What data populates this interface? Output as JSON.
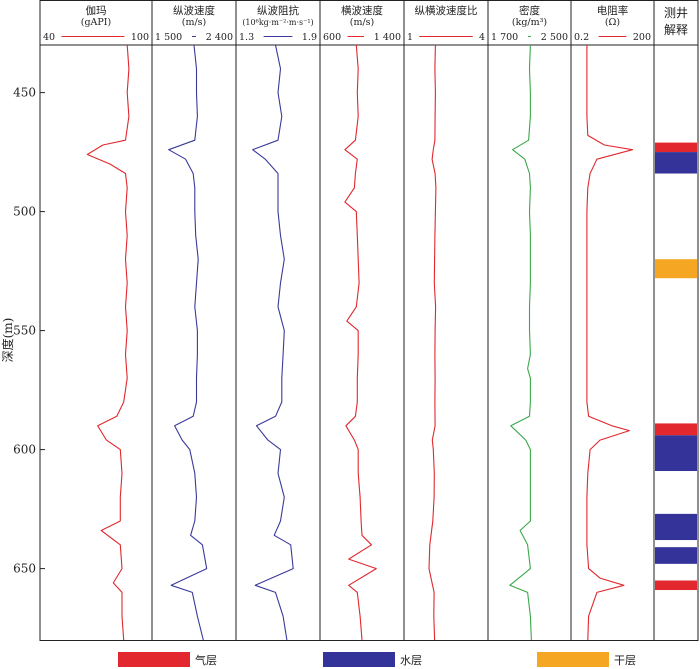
{
  "chart_data": {
    "type": "line",
    "y_axis": {
      "label": "深度(m)",
      "range": [
        430,
        680
      ],
      "ticks": [
        450,
        500,
        550,
        600,
        650
      ],
      "reversed": true
    },
    "tracks": [
      {
        "id": "gamma",
        "title": "伽玛",
        "unit": "(gAPI)",
        "min_label": "40",
        "max_label": "100",
        "range": [
          40,
          100
        ],
        "color": "#e0282e",
        "depth": [
          430,
          440,
          450,
          460,
          470,
          472,
          476,
          480,
          484,
          490,
          500,
          510,
          520,
          530,
          540,
          550,
          560,
          570,
          580,
          586,
          590,
          596,
          600,
          610,
          620,
          630,
          634,
          640,
          650,
          656,
          660,
          670,
          680
        ],
        "values": [
          88,
          89,
          88,
          89,
          87,
          74,
          65,
          78,
          87,
          88,
          87,
          88,
          87,
          88,
          87,
          88,
          87,
          88,
          86,
          82,
          71,
          76,
          84,
          85,
          84,
          84,
          73,
          84,
          85,
          80,
          85,
          85,
          86
        ]
      },
      {
        "id": "vp",
        "title": "纵波速度",
        "unit": "(m/s)",
        "min_label": "1 500",
        "max_label": "2 400",
        "range": [
          1500,
          2400
        ],
        "color": "#3a3a9a",
        "depth": [
          430,
          440,
          450,
          460,
          470,
          474,
          478,
          484,
          490,
          500,
          510,
          520,
          530,
          540,
          550,
          560,
          570,
          580,
          586,
          590,
          596,
          600,
          610,
          620,
          630,
          636,
          640,
          650,
          657,
          660,
          670,
          680
        ],
        "values": [
          1950,
          1980,
          1980,
          1990,
          1960,
          1650,
          1850,
          1940,
          1960,
          1960,
          1970,
          2000,
          1980,
          1960,
          1990,
          1990,
          1980,
          1980,
          1940,
          1720,
          1810,
          1900,
          1960,
          1980,
          1960,
          1910,
          2050,
          2100,
          1680,
          1930,
          1990,
          2060
        ]
      },
      {
        "id": "impedance",
        "title": "纵波阻抗",
        "unit": "(10⁶kg·m⁻²·m·s⁻¹)",
        "min_label": "1.3",
        "max_label": "1.9",
        "range": [
          1.3,
          1.9
        ],
        "color": "#3a3a9a",
        "depth": [
          430,
          440,
          450,
          460,
          470,
          474,
          478,
          484,
          490,
          500,
          510,
          520,
          530,
          540,
          550,
          560,
          570,
          580,
          586,
          590,
          596,
          600,
          610,
          620,
          630,
          636,
          640,
          650,
          657,
          660,
          670,
          680
        ],
        "values": [
          1.58,
          1.62,
          1.6,
          1.63,
          1.6,
          1.4,
          1.5,
          1.6,
          1.6,
          1.6,
          1.62,
          1.65,
          1.62,
          1.6,
          1.65,
          1.64,
          1.63,
          1.63,
          1.58,
          1.43,
          1.52,
          1.62,
          1.6,
          1.65,
          1.62,
          1.57,
          1.7,
          1.72,
          1.42,
          1.58,
          1.64,
          1.67
        ]
      },
      {
        "id": "vs",
        "title": "横波速度",
        "unit": "(m/s)",
        "min_label": "600",
        "max_label": "1 400",
        "range": [
          600,
          1400
        ],
        "color": "#e0282e",
        "depth": [
          430,
          440,
          450,
          460,
          470,
          474,
          478,
          484,
          490,
          496,
          500,
          510,
          520,
          530,
          540,
          546,
          550,
          560,
          570,
          580,
          586,
          590,
          596,
          600,
          610,
          620,
          630,
          636,
          640,
          646,
          650,
          657,
          660,
          670,
          680
        ],
        "values": [
          940,
          960,
          950,
          960,
          930,
          820,
          950,
          930,
          920,
          820,
          940,
          950,
          960,
          970,
          940,
          840,
          960,
          960,
          950,
          950,
          930,
          830,
          920,
          960,
          960,
          980,
          990,
          1000,
          1100,
          860,
          1150,
          860,
          950,
          980,
          1000
        ]
      },
      {
        "id": "vp_vs",
        "title": "纵横波速度比",
        "unit": "",
        "min_label": "1",
        "max_label": "4",
        "range": [
          1,
          4
        ],
        "color": "#e0282e",
        "depth": [
          430,
          440,
          450,
          460,
          470,
          474,
          478,
          484,
          490,
          500,
          510,
          520,
          530,
          540,
          550,
          560,
          570,
          580,
          590,
          596,
          600,
          610,
          620,
          630,
          640,
          650,
          660,
          670,
          680
        ],
        "values": [
          2.08,
          2.06,
          2.08,
          2.07,
          2.06,
          2.0,
          1.95,
          2.07,
          2.1,
          2.08,
          2.06,
          2.05,
          2.04,
          2.09,
          2.07,
          2.06,
          2.07,
          2.06,
          2.07,
          1.96,
          2.0,
          2.04,
          2.03,
          1.98,
          1.86,
          1.83,
          2.03,
          2.02,
          2.05
        ]
      },
      {
        "id": "density",
        "title": "密度",
        "unit": "(kg/m³)",
        "min_label": "1 700",
        "max_label": "2 500",
        "range": [
          1700,
          2500
        ],
        "color": "#3aa84a",
        "depth": [
          430,
          440,
          450,
          460,
          470,
          474,
          478,
          484,
          490,
          500,
          510,
          520,
          530,
          540,
          550,
          560,
          566,
          570,
          580,
          586,
          590,
          596,
          600,
          610,
          620,
          630,
          634,
          640,
          650,
          657,
          660,
          670,
          680
        ],
        "values": [
          2110,
          2100,
          2110,
          2110,
          2090,
          1920,
          2050,
          2100,
          2110,
          2100,
          2110,
          2110,
          2110,
          2100,
          2100,
          2110,
          2080,
          2110,
          2110,
          2100,
          1900,
          2060,
          2110,
          2110,
          2110,
          2110,
          2000,
          2080,
          2110,
          1890,
          2080,
          2110,
          2120
        ]
      },
      {
        "id": "resistivity",
        "title": "电阻率",
        "unit": "(Ω)",
        "min_label": "0.2",
        "max_label": "200",
        "range": [
          0.2,
          200
        ],
        "log_scale": true,
        "color": "#e0282e",
        "depth": [
          430,
          440,
          450,
          460,
          468,
          472,
          474,
          478,
          484,
          490,
          500,
          510,
          520,
          530,
          540,
          550,
          560,
          570,
          580,
          586,
          590,
          592,
          596,
          600,
          610,
          620,
          630,
          640,
          650,
          654,
          657,
          660,
          670,
          680
        ],
        "values": [
          0.6,
          0.6,
          0.6,
          0.6,
          0.65,
          3,
          40,
          1.5,
          0.8,
          0.65,
          0.6,
          0.6,
          0.6,
          0.6,
          0.6,
          0.6,
          0.6,
          0.6,
          0.6,
          0.7,
          6,
          30,
          2,
          0.8,
          0.65,
          0.6,
          0.6,
          0.6,
          0.7,
          2,
          18,
          1.5,
          0.7,
          0.65
        ]
      }
    ],
    "interpretation": {
      "title_line1": "测井",
      "title_line2": "解释",
      "intervals": [
        {
          "type": "gas",
          "top": 471,
          "bottom": 475
        },
        {
          "type": "water",
          "top": 475,
          "bottom": 484
        },
        {
          "type": "dry",
          "top": 520,
          "bottom": 528
        },
        {
          "type": "gas",
          "top": 589,
          "bottom": 594
        },
        {
          "type": "water",
          "top": 594,
          "bottom": 609
        },
        {
          "type": "water",
          "top": 627,
          "bottom": 638
        },
        {
          "type": "water",
          "top": 641,
          "bottom": 648
        },
        {
          "type": "gas",
          "top": 655,
          "bottom": 659
        }
      ]
    },
    "legend": [
      {
        "type": "gas",
        "label": "气层",
        "color": "#e2282e"
      },
      {
        "type": "water",
        "label": "水层",
        "color": "#333399"
      },
      {
        "type": "dry",
        "label": "干层",
        "color": "#f5a623"
      }
    ]
  }
}
